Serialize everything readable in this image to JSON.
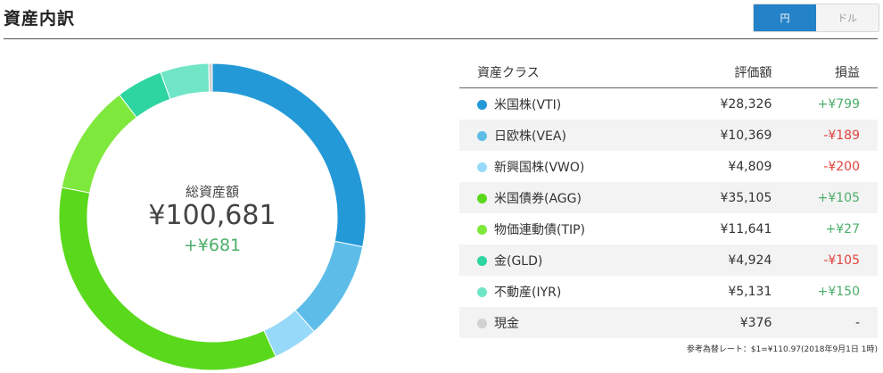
{
  "header": {
    "title": "資産内訳",
    "toggle_yen": "円",
    "toggle_usd": "ドル"
  },
  "summary": {
    "label": "総資産額",
    "total": "¥100,681",
    "change": "+¥681"
  },
  "table": {
    "headers": {
      "asset_class": "資産クラス",
      "valuation": "評価額",
      "profit_loss": "損益"
    },
    "rows": [
      {
        "name": "米国株(VTI)",
        "value": "¥28,326",
        "pl": "+¥799",
        "sign": "pos",
        "color": "#2399d7"
      },
      {
        "name": "日欧株(VEA)",
        "value": "¥10,369",
        "pl": "-¥189",
        "sign": "neg",
        "color": "#5ebde8"
      },
      {
        "name": "新興国株(VWO)",
        "value": "¥4,809",
        "pl": "-¥200",
        "sign": "neg",
        "color": "#97d9f9"
      },
      {
        "name": "米国債券(AGG)",
        "value": "¥35,105",
        "pl": "+¥105",
        "sign": "pos",
        "color": "#5ad91c"
      },
      {
        "name": "物価連動債(TIP)",
        "value": "¥11,641",
        "pl": "+¥27",
        "sign": "pos",
        "color": "#7fe83c"
      },
      {
        "name": "金(GLD)",
        "value": "¥4,924",
        "pl": "-¥105",
        "sign": "neg",
        "color": "#2ed5a0"
      },
      {
        "name": "不動産(IYR)",
        "value": "¥5,131",
        "pl": "+¥150",
        "sign": "pos",
        "color": "#70e6c6"
      },
      {
        "name": "現金",
        "value": "¥376",
        "pl": "-",
        "sign": "neu",
        "color": "#d0d0d0"
      }
    ]
  },
  "footnote": "参考為替レート：$1=¥110.97(2018年9月1日 1時)",
  "chart_data": {
    "type": "pie",
    "categories": [
      "米国株(VTI)",
      "日欧株(VEA)",
      "新興国株(VWO)",
      "米国債券(AGG)",
      "物価連動債(TIP)",
      "金(GLD)",
      "不動産(IYR)",
      "現金"
    ],
    "values": [
      28326,
      10369,
      4809,
      35105,
      11641,
      4924,
      5131,
      376
    ],
    "colors": [
      "#2399d7",
      "#5ebde8",
      "#97d9f9",
      "#5ad91c",
      "#7fe83c",
      "#2ed5a0",
      "#70e6c6",
      "#d0d0d0"
    ]
  }
}
